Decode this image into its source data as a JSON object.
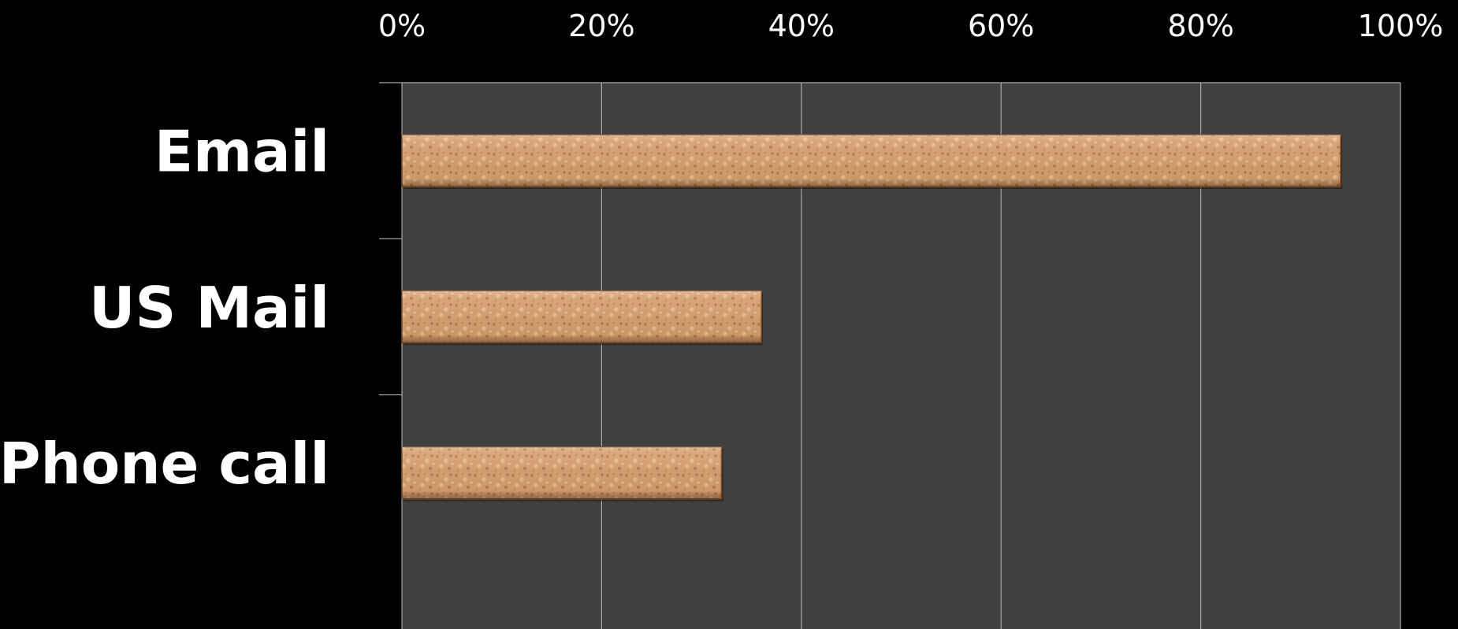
{
  "chart_data": {
    "type": "bar",
    "orientation": "horizontal",
    "title": "",
    "xlabel": "",
    "ylabel": "",
    "categories": [
      "Email",
      "US Mail",
      "Phone call"
    ],
    "values": [
      94,
      36,
      32
    ],
    "xlim": [
      0,
      100
    ],
    "x_tick_labels": [
      "0%",
      "20%",
      "40%",
      "60%",
      "80%",
      "100%"
    ],
    "x_tick_values": [
      0,
      20,
      40,
      60,
      80,
      100
    ],
    "x_axis_position": "top",
    "grid": true,
    "legend": "none"
  },
  "colors": {
    "background": "#000000",
    "plot_area": "#404040",
    "gridline": "#a8a8a8",
    "bar_fill": "#d9a06c",
    "bar_edge": "#7a4e2a",
    "text": "#ffffff"
  }
}
